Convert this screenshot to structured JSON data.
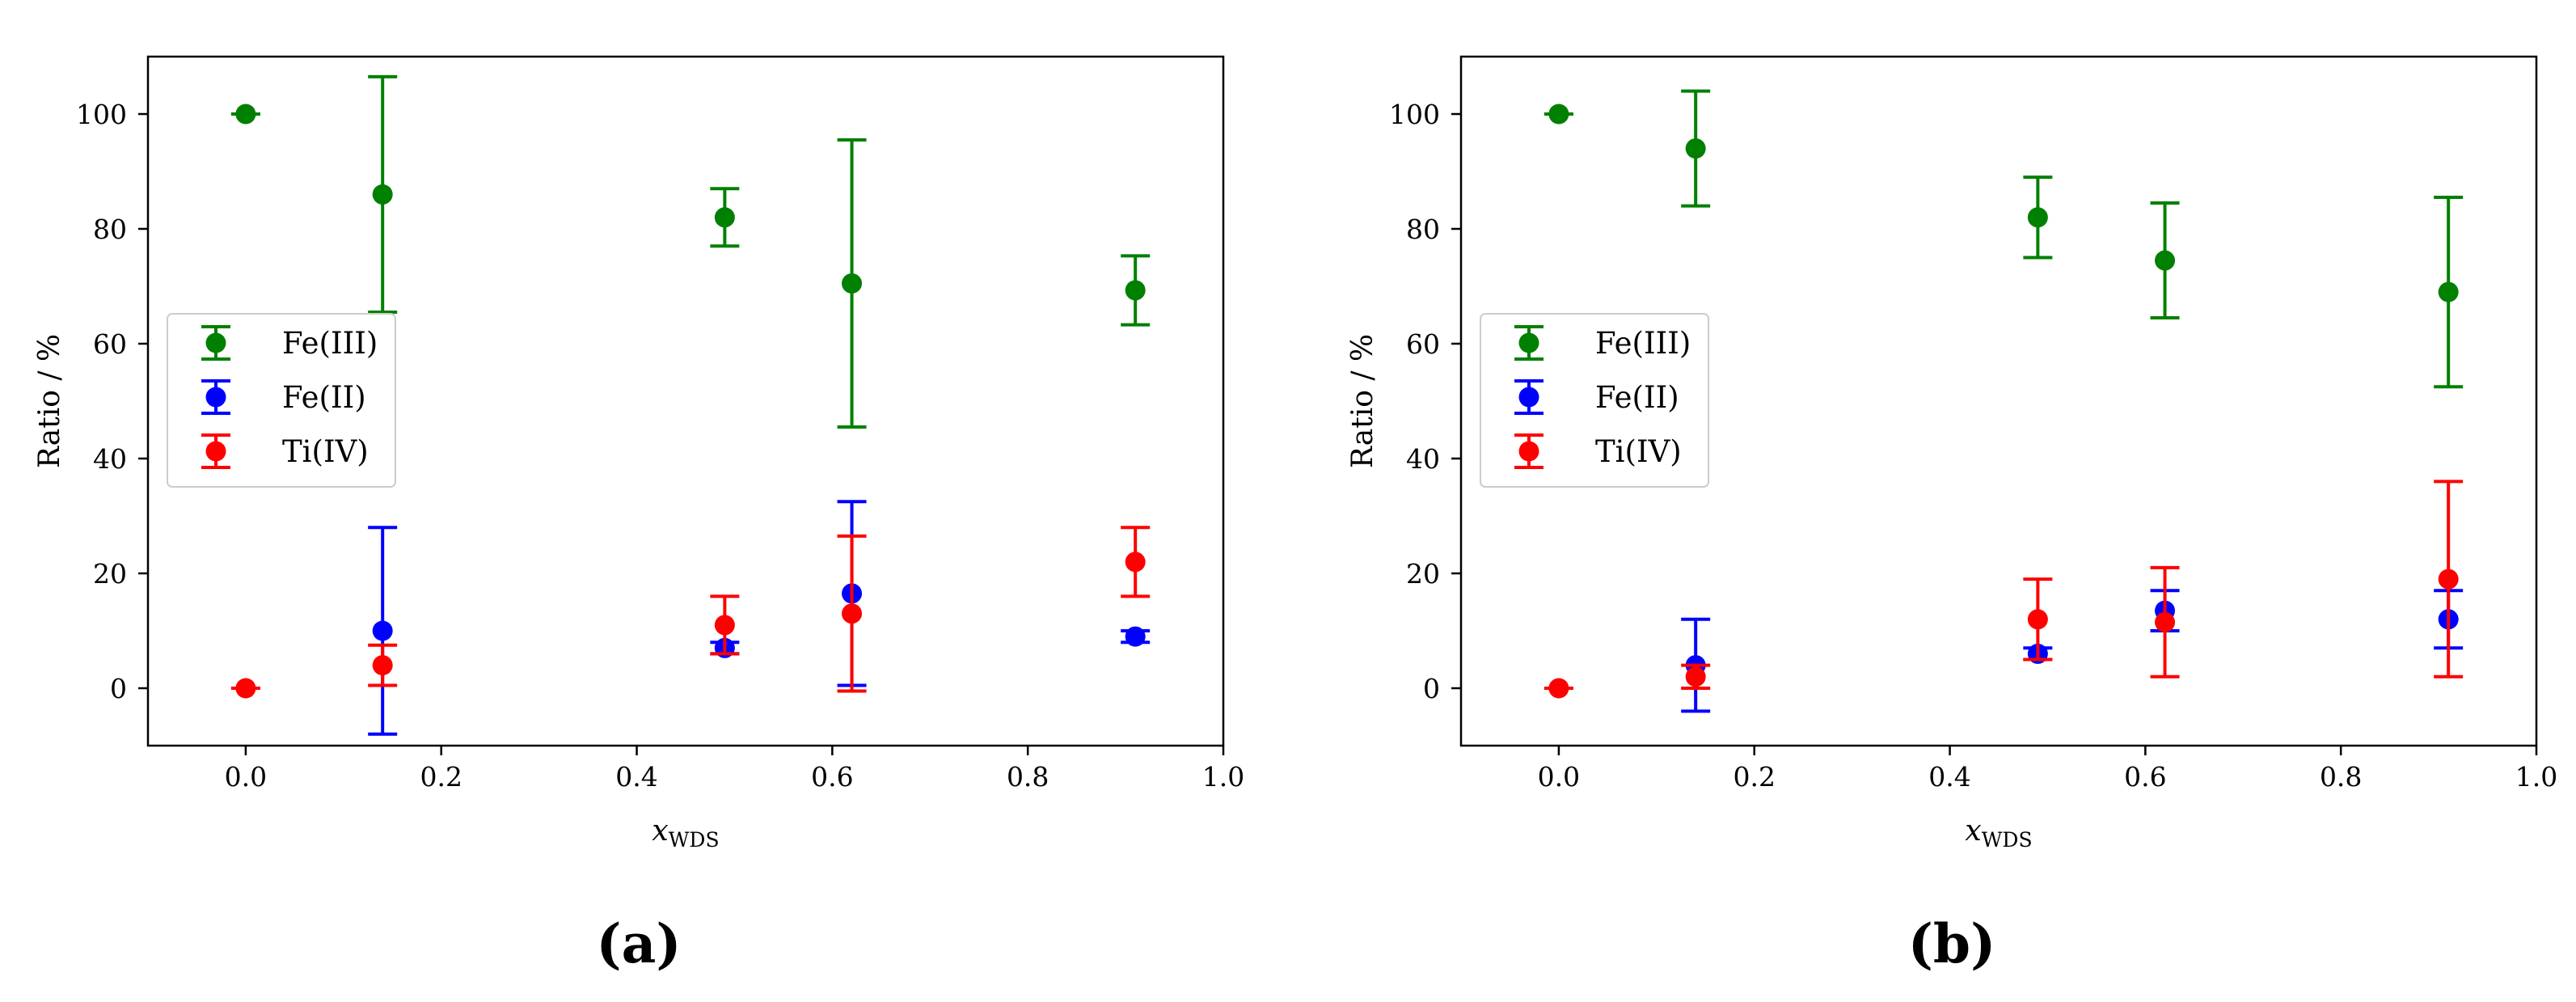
{
  "chart_data": [
    {
      "type": "scatter",
      "panel_label": "(a)",
      "xlabel": "x",
      "xlabel_subscript": "WDS",
      "ylabel": "Ratio / %",
      "xlim": [
        -0.1,
        1.0
      ],
      "ylim": [
        -10,
        110
      ],
      "xticks": [
        0.0,
        0.2,
        0.4,
        0.6,
        0.8,
        1.0
      ],
      "xtick_labels": [
        "0.0",
        "0.2",
        "0.4",
        "0.6",
        "0.8",
        "1.0"
      ],
      "yticks": [
        0,
        20,
        40,
        60,
        80,
        100
      ],
      "ytick_labels": [
        "0",
        "20",
        "40",
        "60",
        "80",
        "100"
      ],
      "legend_position": "center-left",
      "series": [
        {
          "name": "Fe(III)",
          "color": "#008000",
          "x": [
            0.0,
            0.14,
            0.49,
            0.62,
            0.91
          ],
          "y": [
            100,
            86,
            82,
            70.5,
            69.3
          ],
          "err_low": [
            0,
            20.5,
            5,
            25,
            6
          ],
          "err_high": [
            0,
            20.5,
            5,
            25,
            6
          ]
        },
        {
          "name": "Fe(II)",
          "color": "#0000ff",
          "x": [
            0.14,
            0.49,
            0.62,
            0.91
          ],
          "y": [
            10,
            7,
            16.5,
            9
          ],
          "err_low": [
            18,
            1,
            16,
            1
          ],
          "err_high": [
            18,
            1,
            16,
            1
          ]
        },
        {
          "name": "Ti(IV)",
          "color": "#ff0000",
          "x": [
            0.0,
            0.14,
            0.49,
            0.62,
            0.91
          ],
          "y": [
            0,
            4,
            11,
            13,
            22
          ],
          "err_low": [
            0,
            3.5,
            5,
            13.5,
            6
          ],
          "err_high": [
            0,
            3.5,
            5,
            13.5,
            6
          ]
        }
      ]
    },
    {
      "type": "scatter",
      "panel_label": "(b)",
      "xlabel": "x",
      "xlabel_subscript": "WDS",
      "ylabel": "Ratio / %",
      "xlim": [
        -0.1,
        1.0
      ],
      "ylim": [
        -10,
        110
      ],
      "xticks": [
        0.0,
        0.2,
        0.4,
        0.6,
        0.8,
        1.0
      ],
      "xtick_labels": [
        "0.0",
        "0.2",
        "0.4",
        "0.6",
        "0.8",
        "1.0"
      ],
      "yticks": [
        0,
        20,
        40,
        60,
        80,
        100
      ],
      "ytick_labels": [
        "0",
        "20",
        "40",
        "60",
        "80",
        "100"
      ],
      "legend_position": "center-left",
      "series": [
        {
          "name": "Fe(III)",
          "color": "#008000",
          "x": [
            0.0,
            0.14,
            0.49,
            0.62,
            0.91
          ],
          "y": [
            100,
            94,
            82,
            74.5,
            69
          ],
          "err_low": [
            0,
            10,
            7,
            10,
            16.5
          ],
          "err_high": [
            0,
            10,
            7,
            10,
            16.5
          ]
        },
        {
          "name": "Fe(II)",
          "color": "#0000ff",
          "x": [
            0.14,
            0.49,
            0.62,
            0.91
          ],
          "y": [
            4,
            6,
            13.5,
            12
          ],
          "err_low": [
            8,
            1,
            3.5,
            5
          ],
          "err_high": [
            8,
            1,
            3.5,
            5
          ]
        },
        {
          "name": "Ti(IV)",
          "color": "#ff0000",
          "x": [
            0.0,
            0.14,
            0.49,
            0.62,
            0.91
          ],
          "y": [
            0,
            2,
            12,
            11.5,
            19
          ],
          "err_low": [
            0,
            2,
            7,
            9.5,
            17
          ],
          "err_high": [
            0,
            2,
            7,
            9.5,
            17
          ]
        }
      ]
    }
  ]
}
